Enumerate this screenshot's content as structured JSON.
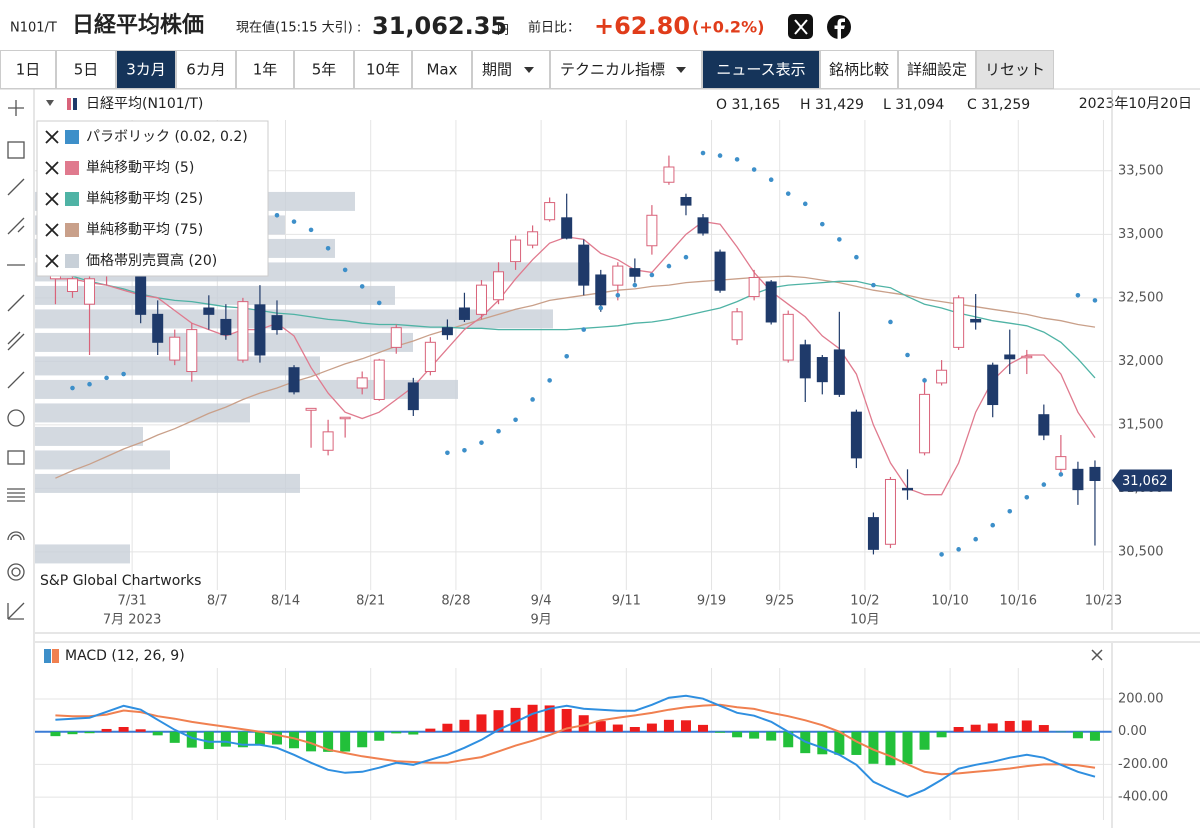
{
  "header": {
    "ticker": "N101/T",
    "title": "日経平均株価",
    "price_label": "現在値(15:15 大引) :",
    "price": "31,062.35",
    "unit": "円",
    "change_label": "前日比：",
    "change": "+62.80",
    "change_pct": "(+0.2%)"
  },
  "toolbar": {
    "buttons": [
      {
        "label": "1日"
      },
      {
        "label": "5日"
      },
      {
        "label": "3カ月",
        "selected": true
      },
      {
        "label": "6カ月"
      },
      {
        "label": "1年"
      },
      {
        "label": "5年"
      },
      {
        "label": "10年"
      },
      {
        "label": "Max"
      },
      {
        "label": "期間",
        "dropdown": true
      },
      {
        "label": "テクニカル指標",
        "dropdown": true
      },
      {
        "label": "ニュース表示",
        "selected": true
      },
      {
        "label": "銘柄比較"
      },
      {
        "label": "詳細設定"
      },
      {
        "label": "リセット",
        "disabled": true
      }
    ]
  },
  "chart_header": {
    "title": "日経平均(N101/T)",
    "open": "O 31,165",
    "high": "H 31,429",
    "low": "L 31,094",
    "close": "C 31,259",
    "date": "2023年10月20日"
  },
  "credit": "S&P Global Chartworks",
  "chart_data": [
    {
      "type": "candlestick",
      "up_color": "#d9637a",
      "down_color": "#1f3a6a",
      "ohlc": [
        [
          32650,
          32800,
          32450,
          32700
        ],
        [
          32550,
          32700,
          32500,
          32650
        ],
        [
          32450,
          32750,
          32050,
          32650
        ],
        [
          32700,
          32900,
          32600,
          32800
        ],
        [
          32800,
          32950,
          32700,
          32750
        ],
        [
          32700,
          32750,
          32300,
          32370
        ],
        [
          32370,
          32480,
          32050,
          32150
        ],
        [
          32010,
          32250,
          31970,
          32190
        ],
        [
          31920,
          32300,
          31840,
          32250
        ],
        [
          32420,
          32520,
          32250,
          32370
        ],
        [
          32330,
          32450,
          32170,
          32210
        ],
        [
          32010,
          32500,
          31990,
          32470
        ],
        [
          32445,
          32600,
          31990,
          32050
        ],
        [
          32360,
          32480,
          32210,
          32250
        ],
        [
          31950,
          31970,
          31740,
          31760
        ],
        [
          31615,
          31630,
          31320,
          31630
        ],
        [
          31300,
          31540,
          31260,
          31445
        ],
        [
          31550,
          31560,
          31400,
          31560
        ],
        [
          31790,
          31920,
          31740,
          31870
        ],
        [
          31700,
          32020,
          31690,
          32010
        ],
        [
          32110,
          32290,
          32060,
          32265
        ],
        [
          31830,
          31870,
          31570,
          31620
        ],
        [
          31920,
          32190,
          31890,
          32150
        ],
        [
          32265,
          32330,
          32170,
          32210
        ],
        [
          32420,
          32540,
          32310,
          32330
        ],
        [
          32370,
          32640,
          32330,
          32600
        ],
        [
          32485,
          32780,
          32450,
          32705
        ],
        [
          32785,
          32990,
          32720,
          32955
        ],
        [
          32915,
          33070,
          32890,
          33020
        ],
        [
          33115,
          33290,
          33100,
          33250
        ],
        [
          33130,
          33320,
          32960,
          32970
        ],
        [
          32915,
          32960,
          32520,
          32600
        ],
        [
          32680,
          32720,
          32390,
          32445
        ],
        [
          32600,
          32780,
          32480,
          32750
        ],
        [
          32730,
          32810,
          32620,
          32670
        ],
        [
          32910,
          33230,
          32840,
          33150
        ],
        [
          33410,
          33620,
          33390,
          33530
        ],
        [
          33290,
          33320,
          33150,
          33230
        ],
        [
          33130,
          33160,
          32990,
          33010
        ],
        [
          32860,
          32880,
          32540,
          32560
        ],
        [
          32170,
          32420,
          32130,
          32390
        ],
        [
          32510,
          32720,
          32480,
          32660
        ],
        [
          32625,
          32640,
          32290,
          32310
        ],
        [
          32010,
          32400,
          31990,
          32370
        ],
        [
          32130,
          32170,
          31680,
          31870
        ],
        [
          32030,
          32050,
          31740,
          31840
        ],
        [
          32090,
          32390,
          31720,
          31740
        ],
        [
          31600,
          31620,
          31160,
          31240
        ],
        [
          30770,
          30810,
          30480,
          30520
        ],
        [
          30560,
          31090,
          30530,
          31070
        ],
        [
          31000,
          31150,
          30910,
          30990
        ],
        [
          31280,
          31870,
          31260,
          31740
        ],
        [
          31830,
          32010,
          31810,
          31930
        ],
        [
          32110,
          32520,
          32090,
          32500
        ],
        [
          32330,
          32530,
          32250,
          32310
        ],
        [
          31970,
          31990,
          31560,
          31660
        ],
        [
          32050,
          32250,
          31900,
          32020
        ],
        [
          32030,
          32090,
          31900,
          32040
        ],
        [
          31580,
          31660,
          31380,
          31420
        ],
        [
          31150,
          31420,
          31110,
          31250
        ],
        [
          31150,
          31210,
          30870,
          30990
        ],
        [
          31165,
          31220,
          30550,
          31062
        ]
      ],
      "sar": {
        "name": "パラボリック (0.02, 0.2)",
        "color": "#3d8fc9",
        "values": [
          null,
          31790,
          31820,
          31870,
          31900,
          null,
          null,
          null,
          null,
          null,
          null,
          null,
          null,
          33150,
          33100,
          33035,
          32890,
          32720,
          32590,
          32460,
          null,
          null,
          null,
          31280,
          31300,
          31360,
          31450,
          31540,
          31700,
          31850,
          32040,
          32250,
          32420,
          32520,
          32600,
          32680,
          32750,
          32820,
          33640,
          33620,
          33590,
          33510,
          33430,
          33320,
          33240,
          33080,
          32960,
          32820,
          32600,
          32310,
          32050,
          31850,
          30480,
          30520,
          30600,
          30710,
          30820,
          30930,
          31030,
          31110,
          32520,
          32480
        ]
      },
      "series": [
        {
          "name": "単純移動平均 (5)",
          "color": "#e07a8e",
          "values": [
            32650,
            32650,
            32620,
            32600,
            32560,
            32520,
            32500,
            32400,
            32300,
            32250,
            32200,
            32250,
            32250,
            32300,
            32200,
            31950,
            31750,
            31600,
            31550,
            31600,
            31700,
            31800,
            31950,
            32100,
            32250,
            32350,
            32480,
            32650,
            32800,
            32930,
            32980,
            32960,
            32850,
            32800,
            32720,
            32700,
            32850,
            33000,
            33100,
            33080,
            32900,
            32700,
            32550,
            32450,
            32350,
            32200,
            32100,
            31900,
            31500,
            31200,
            31000,
            30950,
            30950,
            31200,
            31600,
            31850,
            31980,
            32050,
            32050,
            31900,
            31600,
            31400
          ]
        },
        {
          "name": "単純移動平均 (25)",
          "color": "#4fb3a5",
          "values": [
            32700,
            32670,
            32630,
            32600,
            32570,
            32530,
            32500,
            32480,
            32470,
            32450,
            32430,
            32420,
            32400,
            32380,
            32370,
            32350,
            32330,
            32320,
            32300,
            32290,
            32290,
            32280,
            32270,
            32270,
            32260,
            32260,
            32250,
            32250,
            32250,
            32250,
            32250,
            32260,
            32270,
            32280,
            32300,
            32310,
            32330,
            32360,
            32390,
            32420,
            32470,
            32530,
            32580,
            32600,
            32610,
            32620,
            32630,
            32630,
            32600,
            32580,
            32510,
            32450,
            32420,
            32380,
            32350,
            32320,
            32300,
            32280,
            32230,
            32150,
            32020,
            31870
          ]
        },
        {
          "name": "単純移動平均 (75)",
          "color": "#c9a08a",
          "values": [
            31080,
            31140,
            31190,
            31250,
            31310,
            31360,
            31420,
            31470,
            31530,
            31590,
            31640,
            31700,
            31750,
            31790,
            31840,
            31880,
            31930,
            31980,
            32020,
            32070,
            32120,
            32160,
            32210,
            32250,
            32290,
            32330,
            32370,
            32410,
            32440,
            32480,
            32500,
            32520,
            32540,
            32560,
            32570,
            32590,
            32600,
            32620,
            32630,
            32640,
            32650,
            32660,
            32665,
            32670,
            32660,
            32640,
            32620,
            32590,
            32560,
            32540,
            32520,
            32490,
            32470,
            32450,
            32430,
            32410,
            32390,
            32370,
            32340,
            32320,
            32290,
            32270
          ]
        }
      ],
      "volume_profile": {
        "name": "価格帯別売買高 (20)",
        "color": "#c8d0d8",
        "price_levels": [
          30484,
          30669,
          30854,
          31039,
          31224,
          31409,
          31594,
          31779,
          31964,
          32149,
          32334,
          32519,
          32704,
          32889,
          33074,
          33259,
          33444,
          33629,
          33814,
          33999
        ],
        "volumes": [
          95,
          0,
          0,
          265,
          135,
          108,
          215,
          423,
          285,
          378,
          518,
          360,
          555,
          300,
          250,
          320,
          0,
          0,
          0,
          0
        ]
      },
      "ylim": [
        30200,
        33900
      ],
      "yticks": [
        {
          "value": 30500,
          "label": "30,500"
        },
        {
          "value": 31000,
          "label": "31,000"
        },
        {
          "value": 31500,
          "label": "31,500"
        },
        {
          "value": 32000,
          "label": "32,000"
        },
        {
          "value": 32500,
          "label": "32,500"
        },
        {
          "value": 33000,
          "label": "33,000"
        },
        {
          "value": 33500,
          "label": "33,500"
        }
      ],
      "xlim": [
        -1.2,
        62
      ],
      "xticks": [
        {
          "value": 5,
          "label": "7/31"
        },
        {
          "value": 10,
          "label": "8/7"
        },
        {
          "value": 14,
          "label": "8/14"
        },
        {
          "value": 19,
          "label": "8/21"
        },
        {
          "value": 24,
          "label": "8/28"
        },
        {
          "value": 29,
          "label": "9/4"
        },
        {
          "value": 34,
          "label": "9/11"
        },
        {
          "value": 39,
          "label": "9/19"
        },
        {
          "value": 43,
          "label": "9/25"
        },
        {
          "value": 48,
          "label": "10/2"
        },
        {
          "value": 53,
          "label": "10/10"
        },
        {
          "value": 57,
          "label": "10/16"
        },
        {
          "value": 62,
          "label": "10/23"
        }
      ],
      "month_labels": [
        {
          "value": 5,
          "label": "7月 2023"
        },
        {
          "value": 29,
          "label": "9月"
        },
        {
          "value": 48,
          "label": "10月"
        }
      ],
      "last_price": {
        "value": 31062,
        "label": "31,062"
      },
      "grid": true
    },
    {
      "type": "macd",
      "title": "MACD (12, 26, 9)",
      "macd": {
        "color": "#2f8fe0",
        "values": [
          73,
          80,
          86,
          122,
          159,
          135,
          73,
          12,
          -37,
          -61,
          -61,
          -80,
          -80,
          -98,
          -141,
          -190,
          -233,
          -251,
          -245,
          -220,
          -190,
          -202,
          -171,
          -141,
          -98,
          -49,
          12,
          61,
          110,
          141,
          159,
          141,
          135,
          129,
          129,
          165,
          208,
          220,
          202,
          159,
          116,
          98,
          61,
          0,
          -61,
          -98,
          -141,
          -202,
          -306,
          -355,
          -398,
          -355,
          -294,
          -226,
          -202,
          -184,
          -159,
          -141,
          -159,
          -202,
          -245,
          -275
        ]
      },
      "signal": {
        "color": "#f08050",
        "values": [
          100,
          95,
          95,
          105,
          130,
          120,
          95,
          80,
          60,
          45,
          30,
          15,
          0,
          -20,
          -40,
          -70,
          -110,
          -130,
          -150,
          -165,
          -180,
          -185,
          -190,
          -190,
          -171,
          -155,
          -120,
          -85,
          -55,
          -20,
          20,
          40,
          70,
          85,
          100,
          115,
          135,
          150,
          160,
          165,
          150,
          140,
          115,
          95,
          70,
          40,
          0,
          -60,
          -110,
          -150,
          -200,
          -245,
          -260,
          -255,
          -245,
          -235,
          -225,
          -210,
          -200,
          -200,
          -205,
          -220
        ]
      },
      "histogram": {
        "up_color": "#ee1c1c",
        "down_color": "#22c03a",
        "values": [
          -27,
          -15,
          -9,
          17,
          29,
          15,
          -22,
          -68,
          -97,
          -106,
          -91,
          -95,
          -80,
          -78,
          -101,
          -120,
          -123,
          -121,
          -95,
          -55,
          -10,
          -17,
          19,
          49,
          73,
          106,
          132,
          146,
          165,
          161,
          139,
          101,
          65,
          44,
          29,
          50,
          73,
          70,
          42,
          -6,
          -34,
          -42,
          -54,
          -95,
          -131,
          -138,
          -141,
          -142,
          -196,
          -205,
          -198,
          -110,
          -34,
          29,
          43,
          51,
          66,
          69,
          41,
          -2,
          -40,
          -55
        ]
      },
      "ylim": [
        -540,
        390
      ],
      "yticks": [
        {
          "value": 200,
          "label": "200.00"
        },
        {
          "value": 0,
          "label": "0.00"
        },
        {
          "value": -200,
          "label": "-200.00"
        },
        {
          "value": -400,
          "label": "-400.00"
        }
      ],
      "grid": true
    }
  ]
}
